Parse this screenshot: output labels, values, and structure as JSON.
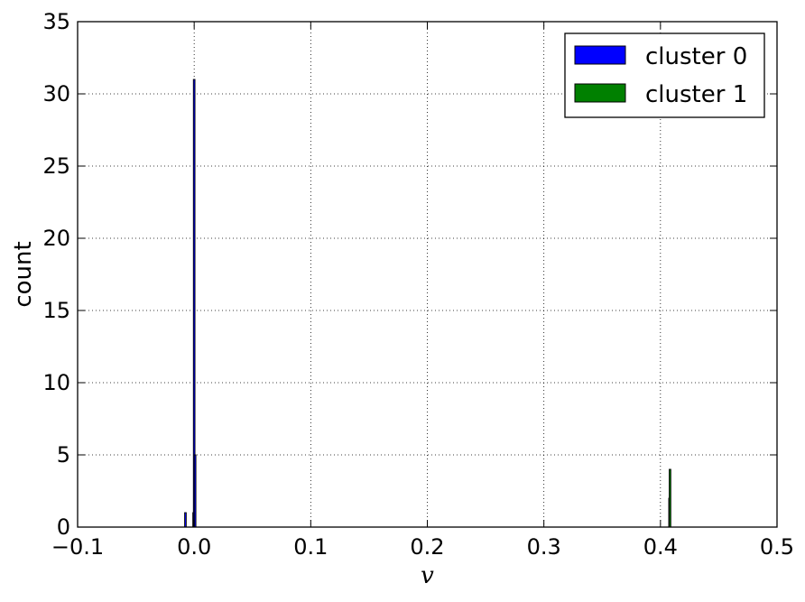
{
  "chart_data": {
    "type": "histogram",
    "xlabel": "v",
    "ylabel": "count",
    "xlim": [
      -0.1,
      0.5
    ],
    "ylim": [
      0,
      35
    ],
    "grid": true,
    "grid_style": "dotted",
    "x_ticks": [
      "−0.1",
      "0.0",
      "0.1",
      "0.2",
      "0.3",
      "0.4",
      "0.5"
    ],
    "y_ticks": [
      "0",
      "5",
      "10",
      "15",
      "20",
      "25",
      "30",
      "35"
    ],
    "legend_position": "top-right",
    "series": [
      {
        "name": "cluster 0",
        "color": "#0000ff",
        "bars": [
          {
            "x": -0.0075,
            "count": 1
          },
          {
            "x": -0.0005,
            "count": 1
          },
          {
            "x": 0.0,
            "count": 31
          },
          {
            "x": 0.0008,
            "count": 5
          }
        ]
      },
      {
        "name": "cluster 1",
        "color": "#008000",
        "bars": [
          {
            "x": 0.4078,
            "count": 2
          },
          {
            "x": 0.4082,
            "count": 4
          }
        ]
      }
    ]
  }
}
